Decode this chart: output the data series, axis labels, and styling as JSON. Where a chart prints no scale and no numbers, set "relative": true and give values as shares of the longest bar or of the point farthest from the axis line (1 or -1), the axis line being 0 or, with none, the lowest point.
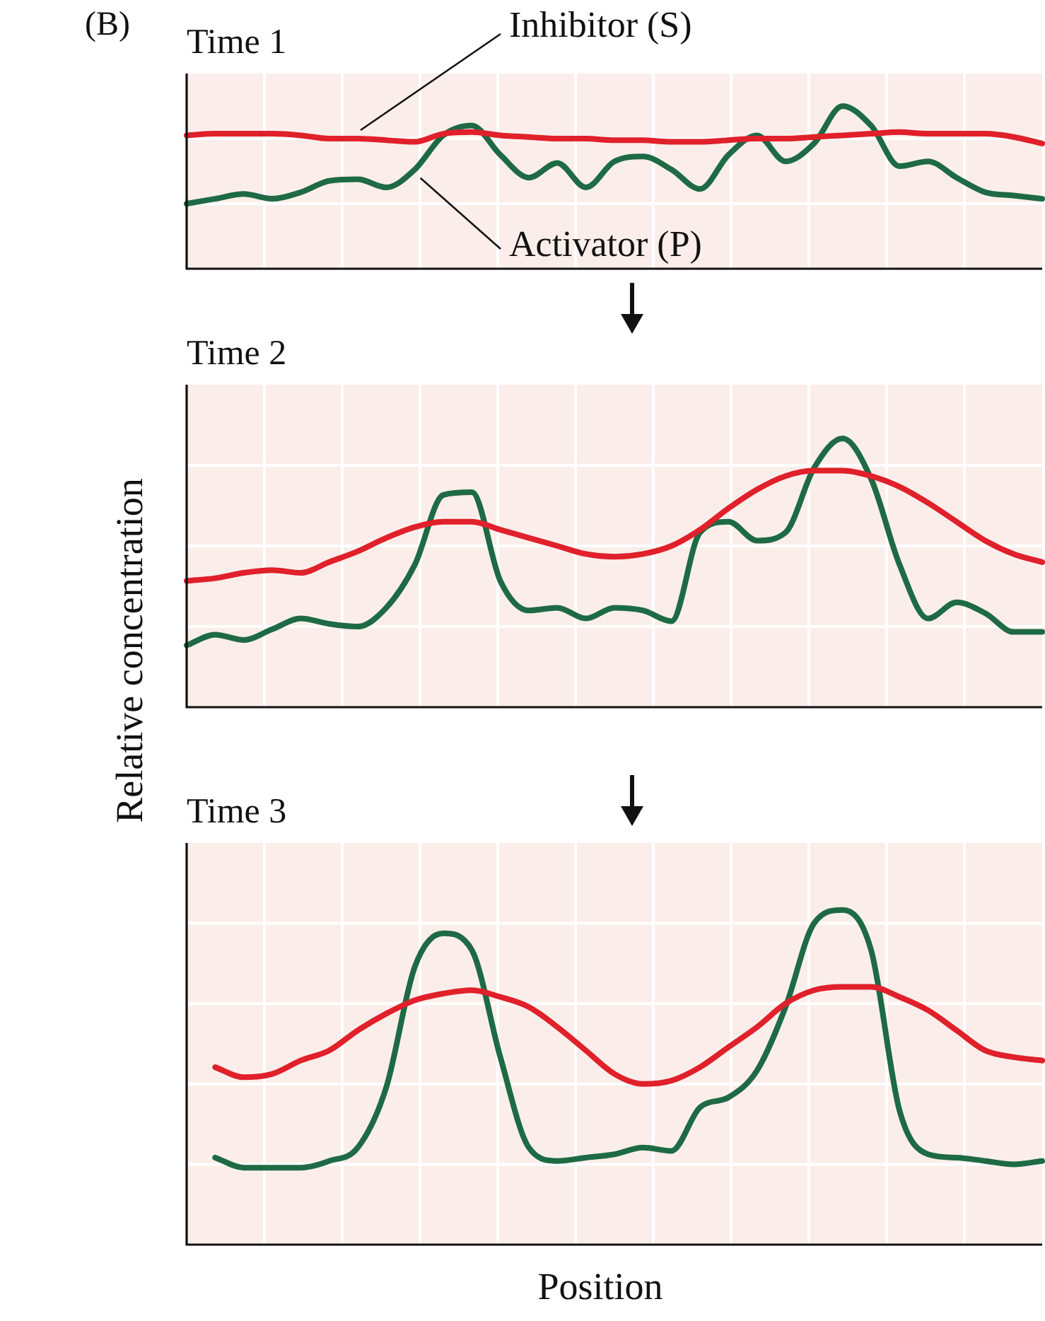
{
  "chart_data": [
    {
      "type": "line",
      "title": "Time 1",
      "relative": true,
      "annotations": [
        "(B)"
      ],
      "categories": [
        null,
        null,
        null,
        null,
        null,
        null,
        null,
        null,
        null,
        null,
        null,
        null,
        null,
        null,
        null,
        null,
        null,
        null,
        null,
        null,
        null,
        null,
        null,
        null,
        null,
        null,
        null,
        null,
        null,
        null,
        null
      ],
      "series": [
        {
          "name": "Inhibitor (S)",
          "color": "#e0202a",
          "values": [
            0.82,
            0.83,
            0.83,
            0.83,
            0.82,
            0.8,
            0.8,
            0.79,
            0.78,
            0.83,
            0.84,
            0.82,
            0.81,
            0.8,
            0.8,
            0.79,
            0.79,
            0.78,
            0.78,
            0.79,
            0.8,
            0.8,
            0.81,
            0.82,
            0.83,
            0.84,
            0.83,
            0.83,
            0.83,
            0.81,
            0.77
          ]
        },
        {
          "name": "Activator (P)",
          "color": "#1e6a45",
          "values": [
            0.4,
            0.43,
            0.46,
            0.43,
            0.47,
            0.54,
            0.55,
            0.5,
            0.61,
            0.82,
            0.88,
            0.7,
            0.56,
            0.65,
            0.5,
            0.66,
            0.69,
            0.61,
            0.49,
            0.7,
            0.82,
            0.66,
            0.77,
            1,
            0.88,
            0.63,
            0.66,
            0.56,
            0.47,
            0.45,
            0.43
          ]
        }
      ]
    },
    {
      "type": "line",
      "title": "Time 2",
      "ylabel": "Relative concentration",
      "relative": true,
      "categories": [
        null,
        null,
        null,
        null,
        null,
        null,
        null,
        null,
        null,
        null,
        null,
        null,
        null,
        null,
        null,
        null,
        null,
        null,
        null,
        null,
        null,
        null,
        null,
        null,
        null,
        null,
        null,
        null,
        null,
        null,
        null
      ],
      "series": [
        {
          "color": "#e0202a",
          "values": [
            0.47,
            0.48,
            0.5,
            0.51,
            0.5,
            0.54,
            0.58,
            0.63,
            0.67,
            0.69,
            0.69,
            0.66,
            0.63,
            0.6,
            0.57,
            0.56,
            0.57,
            0.6,
            0.66,
            0.74,
            0.81,
            0.86,
            0.88,
            0.88,
            0.86,
            0.82,
            0.76,
            0.69,
            0.62,
            0.57,
            0.54
          ]
        },
        {
          "color": "#1e6a45",
          "values": [
            0.23,
            0.27,
            0.25,
            0.29,
            0.33,
            0.31,
            0.3,
            0.37,
            0.53,
            0.79,
            0.8,
            0.47,
            0.36,
            0.37,
            0.33,
            0.37,
            0.36,
            0.32,
            0.65,
            0.69,
            0.62,
            0.65,
            0.89,
            1,
            0.85,
            0.53,
            0.33,
            0.39,
            0.35,
            0.28,
            0.28
          ]
        }
      ]
    },
    {
      "type": "line",
      "title": "Time 3",
      "xlabel": "Position",
      "relative": true,
      "categories": [
        null,
        null,
        null,
        null,
        null,
        null,
        null,
        null,
        null,
        null,
        null,
        null,
        null,
        null,
        null,
        null,
        null,
        null,
        null,
        null,
        null,
        null,
        null,
        null,
        null,
        null,
        null,
        null,
        null,
        null,
        null
      ],
      "series": [
        {
          "color": "#e0202a",
          "values": [
            null,
            0.53,
            0.5,
            0.51,
            0.55,
            0.58,
            0.64,
            0.69,
            0.73,
            0.75,
            0.76,
            0.74,
            0.71,
            0.65,
            0.58,
            0.51,
            0.48,
            0.49,
            0.53,
            0.59,
            0.65,
            0.72,
            0.76,
            0.77,
            0.77,
            0.74,
            0.7,
            0.64,
            0.58,
            0.56,
            0.55
          ]
        },
        {
          "color": "#1e6a45",
          "values": [
            null,
            0.26,
            0.23,
            0.23,
            0.23,
            0.25,
            0.29,
            0.47,
            0.83,
            0.93,
            0.88,
            0.56,
            0.29,
            0.25,
            0.26,
            0.27,
            0.29,
            0.28,
            0.41,
            0.44,
            0.52,
            0.71,
            0.96,
            1,
            0.88,
            0.4,
            0.27,
            0.26,
            0.25,
            0.24,
            0.25
          ]
        }
      ]
    }
  ]
}
